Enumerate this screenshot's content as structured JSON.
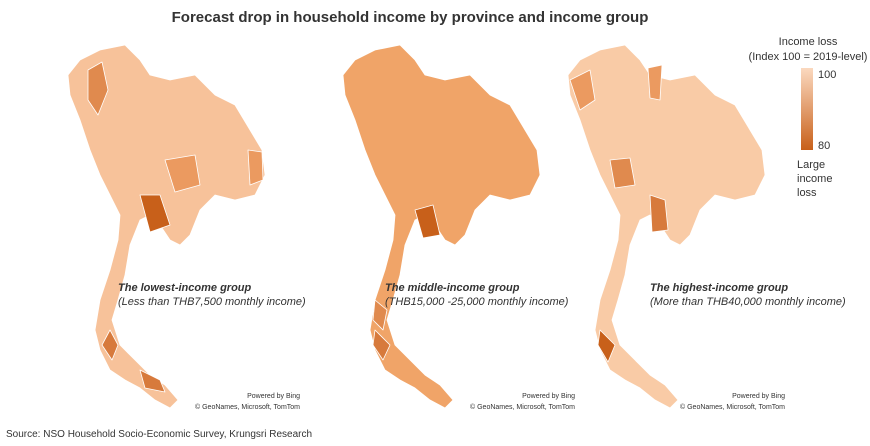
{
  "title": "Forecast drop in household income by province and income group",
  "legend": {
    "title_lines": [
      "Income loss",
      "(Index 100 = 2019-level)"
    ],
    "max": 100,
    "min": 80,
    "low_label_lines": [
      "Large",
      "income",
      "loss"
    ]
  },
  "maps": [
    {
      "group": "The lowest-income group",
      "subtitle": "(Less than THB7,500 monthly income)",
      "credit_lines": [
        "Powered by Bing",
        "© GeoNames, Microsoft, TomTom"
      ]
    },
    {
      "group": "The middle-income group",
      "subtitle": "(THB15,000 -25,000 monthly income)",
      "credit_lines": [
        "Powered by Bing",
        "© GeoNames, Microsoft, TomTom"
      ]
    },
    {
      "group": "The highest-income group",
      "subtitle": "(More than THB40,000 monthly income)",
      "credit_lines": [
        "Powered by Bing",
        "© GeoNames, Microsoft, TomTom"
      ]
    }
  ],
  "source": "Source: NSO Household Socio-Economic Survey, Krungsri Research"
}
